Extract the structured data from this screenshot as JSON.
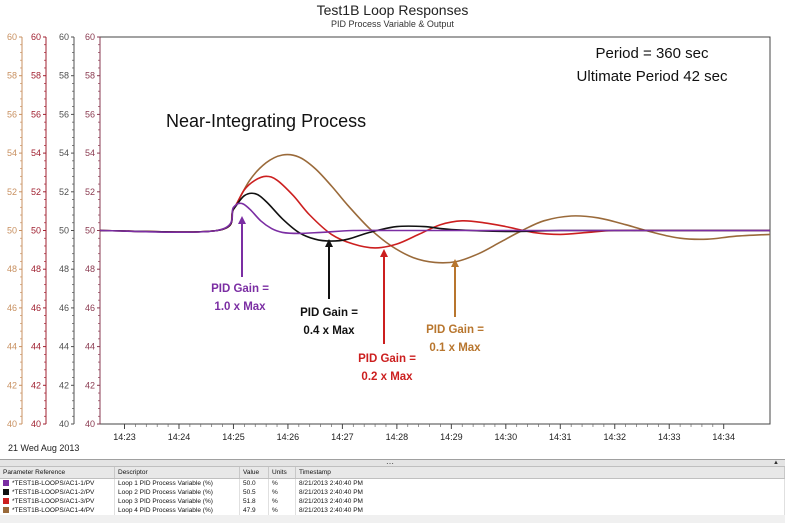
{
  "chart_data": {
    "type": "line",
    "title": "Test1B Loop Responses",
    "subtitle": "PID Process Variable & Output",
    "xlabel": "",
    "ylabel": "",
    "ylim": [
      40,
      60
    ],
    "yticks": [
      40,
      42,
      44,
      46,
      48,
      50,
      52,
      54,
      56,
      58,
      60
    ],
    "y_axis_colors": [
      "#c89060",
      "#a02030",
      "#505050",
      "#8a3a50"
    ],
    "x_ticks": [
      "14:23",
      "14:24",
      "14:25",
      "14:26",
      "14:27",
      "14:28",
      "14:29",
      "14:30",
      "14:31",
      "14:32",
      "14:33",
      "14:34"
    ],
    "xlim_minutes": [
      -2.45,
      9.85
    ],
    "grid": false,
    "date_label": "21 Wed Aug 2013",
    "series": [
      {
        "color": "#7b2ea3",
        "x": [
          -2.45,
          -0.3,
          0,
          0.15,
          0.3,
          0.5,
          0.7,
          0.9,
          1.2,
          1.6,
          2.2,
          3.0,
          4.0,
          6.0,
          8.0,
          9.85
        ],
        "y": [
          50,
          50,
          51.2,
          51.4,
          51.1,
          50.5,
          50.1,
          49.9,
          49.85,
          49.9,
          50.0,
          50.0,
          50.0,
          50.0,
          50.0,
          50.0
        ]
      },
      {
        "color": "#111111",
        "x": [
          -2.45,
          -0.3,
          0,
          0.2,
          0.4,
          0.6,
          0.9,
          1.2,
          1.5,
          1.8,
          2.1,
          2.5,
          3.0,
          3.5,
          4.0,
          5.0,
          6.0,
          7.5,
          9.85
        ],
        "y": [
          50,
          50,
          51.1,
          51.8,
          51.9,
          51.5,
          50.6,
          49.9,
          49.55,
          49.45,
          49.55,
          49.9,
          50.2,
          50.2,
          50.05,
          49.95,
          50.0,
          50.0,
          50.0
        ]
      },
      {
        "color": "#cc1f1f",
        "x": [
          -2.45,
          -0.3,
          0,
          0.2,
          0.4,
          0.6,
          0.8,
          1.1,
          1.4,
          1.8,
          2.2,
          2.6,
          3.0,
          3.4,
          3.8,
          4.2,
          4.6,
          5.0,
          5.5,
          6.0,
          6.5,
          7.0,
          8.0,
          9.85
        ],
        "y": [
          50,
          50,
          51.1,
          52.1,
          52.6,
          52.8,
          52.6,
          51.8,
          50.8,
          49.8,
          49.3,
          49.1,
          49.3,
          49.8,
          50.3,
          50.5,
          50.4,
          50.2,
          49.9,
          49.8,
          49.9,
          50.0,
          50.0,
          50.0
        ]
      },
      {
        "color": "#9a6a3a",
        "x": [
          -2.45,
          -0.3,
          0,
          0.3,
          0.6,
          0.9,
          1.2,
          1.5,
          1.8,
          2.1,
          2.5,
          2.9,
          3.3,
          3.7,
          4.1,
          4.5,
          4.9,
          5.3,
          5.7,
          6.2,
          6.7,
          7.2,
          7.7,
          8.2,
          8.7,
          9.2,
          9.85
        ],
        "y": [
          50,
          50,
          51.1,
          52.6,
          53.5,
          53.9,
          53.8,
          53.2,
          52.3,
          51.3,
          50.1,
          49.2,
          48.6,
          48.35,
          48.4,
          48.8,
          49.4,
          50.0,
          50.5,
          50.75,
          50.65,
          50.3,
          49.9,
          49.6,
          49.55,
          49.7,
          49.8
        ]
      }
    ],
    "annotations": [
      {
        "lines": [
          "Period = 360 sec",
          "Ultimate Period 42 sec"
        ],
        "color": "#111111"
      },
      {
        "lines": [
          "Near-Integrating Process"
        ],
        "color": "#111111"
      },
      {
        "lines": [
          "PID Gain =",
          "1.0 x Max"
        ],
        "color": "#7b2ea3"
      },
      {
        "lines": [
          "PID Gain =",
          "0.4 x Max"
        ],
        "color": "#111111"
      },
      {
        "lines": [
          "PID Gain =",
          "0.2 x Max"
        ],
        "color": "#cc1f1f"
      },
      {
        "lines": [
          "PID Gain =",
          "0.1 x Max"
        ],
        "color": "#b8762e"
      }
    ]
  },
  "param_table": {
    "headers": [
      "Parameter Reference",
      "Descriptor",
      "Value",
      "Units",
      "Timestamp"
    ],
    "rows": [
      {
        "color": "#7b2ea3",
        "ref": "*TEST1B-LOOPS/AC1-1/PV",
        "desc": "Loop 1 PID Process Variable (%)",
        "value": "50.0",
        "units": "%",
        "time": "8/21/2013 2:40:40 PM"
      },
      {
        "color": "#111111",
        "ref": "*TEST1B-LOOPS/AC1-2/PV",
        "desc": "Loop 2 PID Process Variable (%)",
        "value": "50.5",
        "units": "%",
        "time": "8/21/2013 2:40:40 PM"
      },
      {
        "color": "#cc1f1f",
        "ref": "*TEST1B-LOOPS/AC1-3/PV",
        "desc": "Loop 3 PID Process Variable (%)",
        "value": "51.8",
        "units": "%",
        "time": "8/21/2013 2:40:40 PM"
      },
      {
        "color": "#9a6a3a",
        "ref": "*TEST1B-LOOPS/AC1-4/PV",
        "desc": "Loop 4 PID Process Variable (%)",
        "value": "47.9",
        "units": "%",
        "time": "8/21/2013 2:40:40 PM"
      }
    ]
  }
}
